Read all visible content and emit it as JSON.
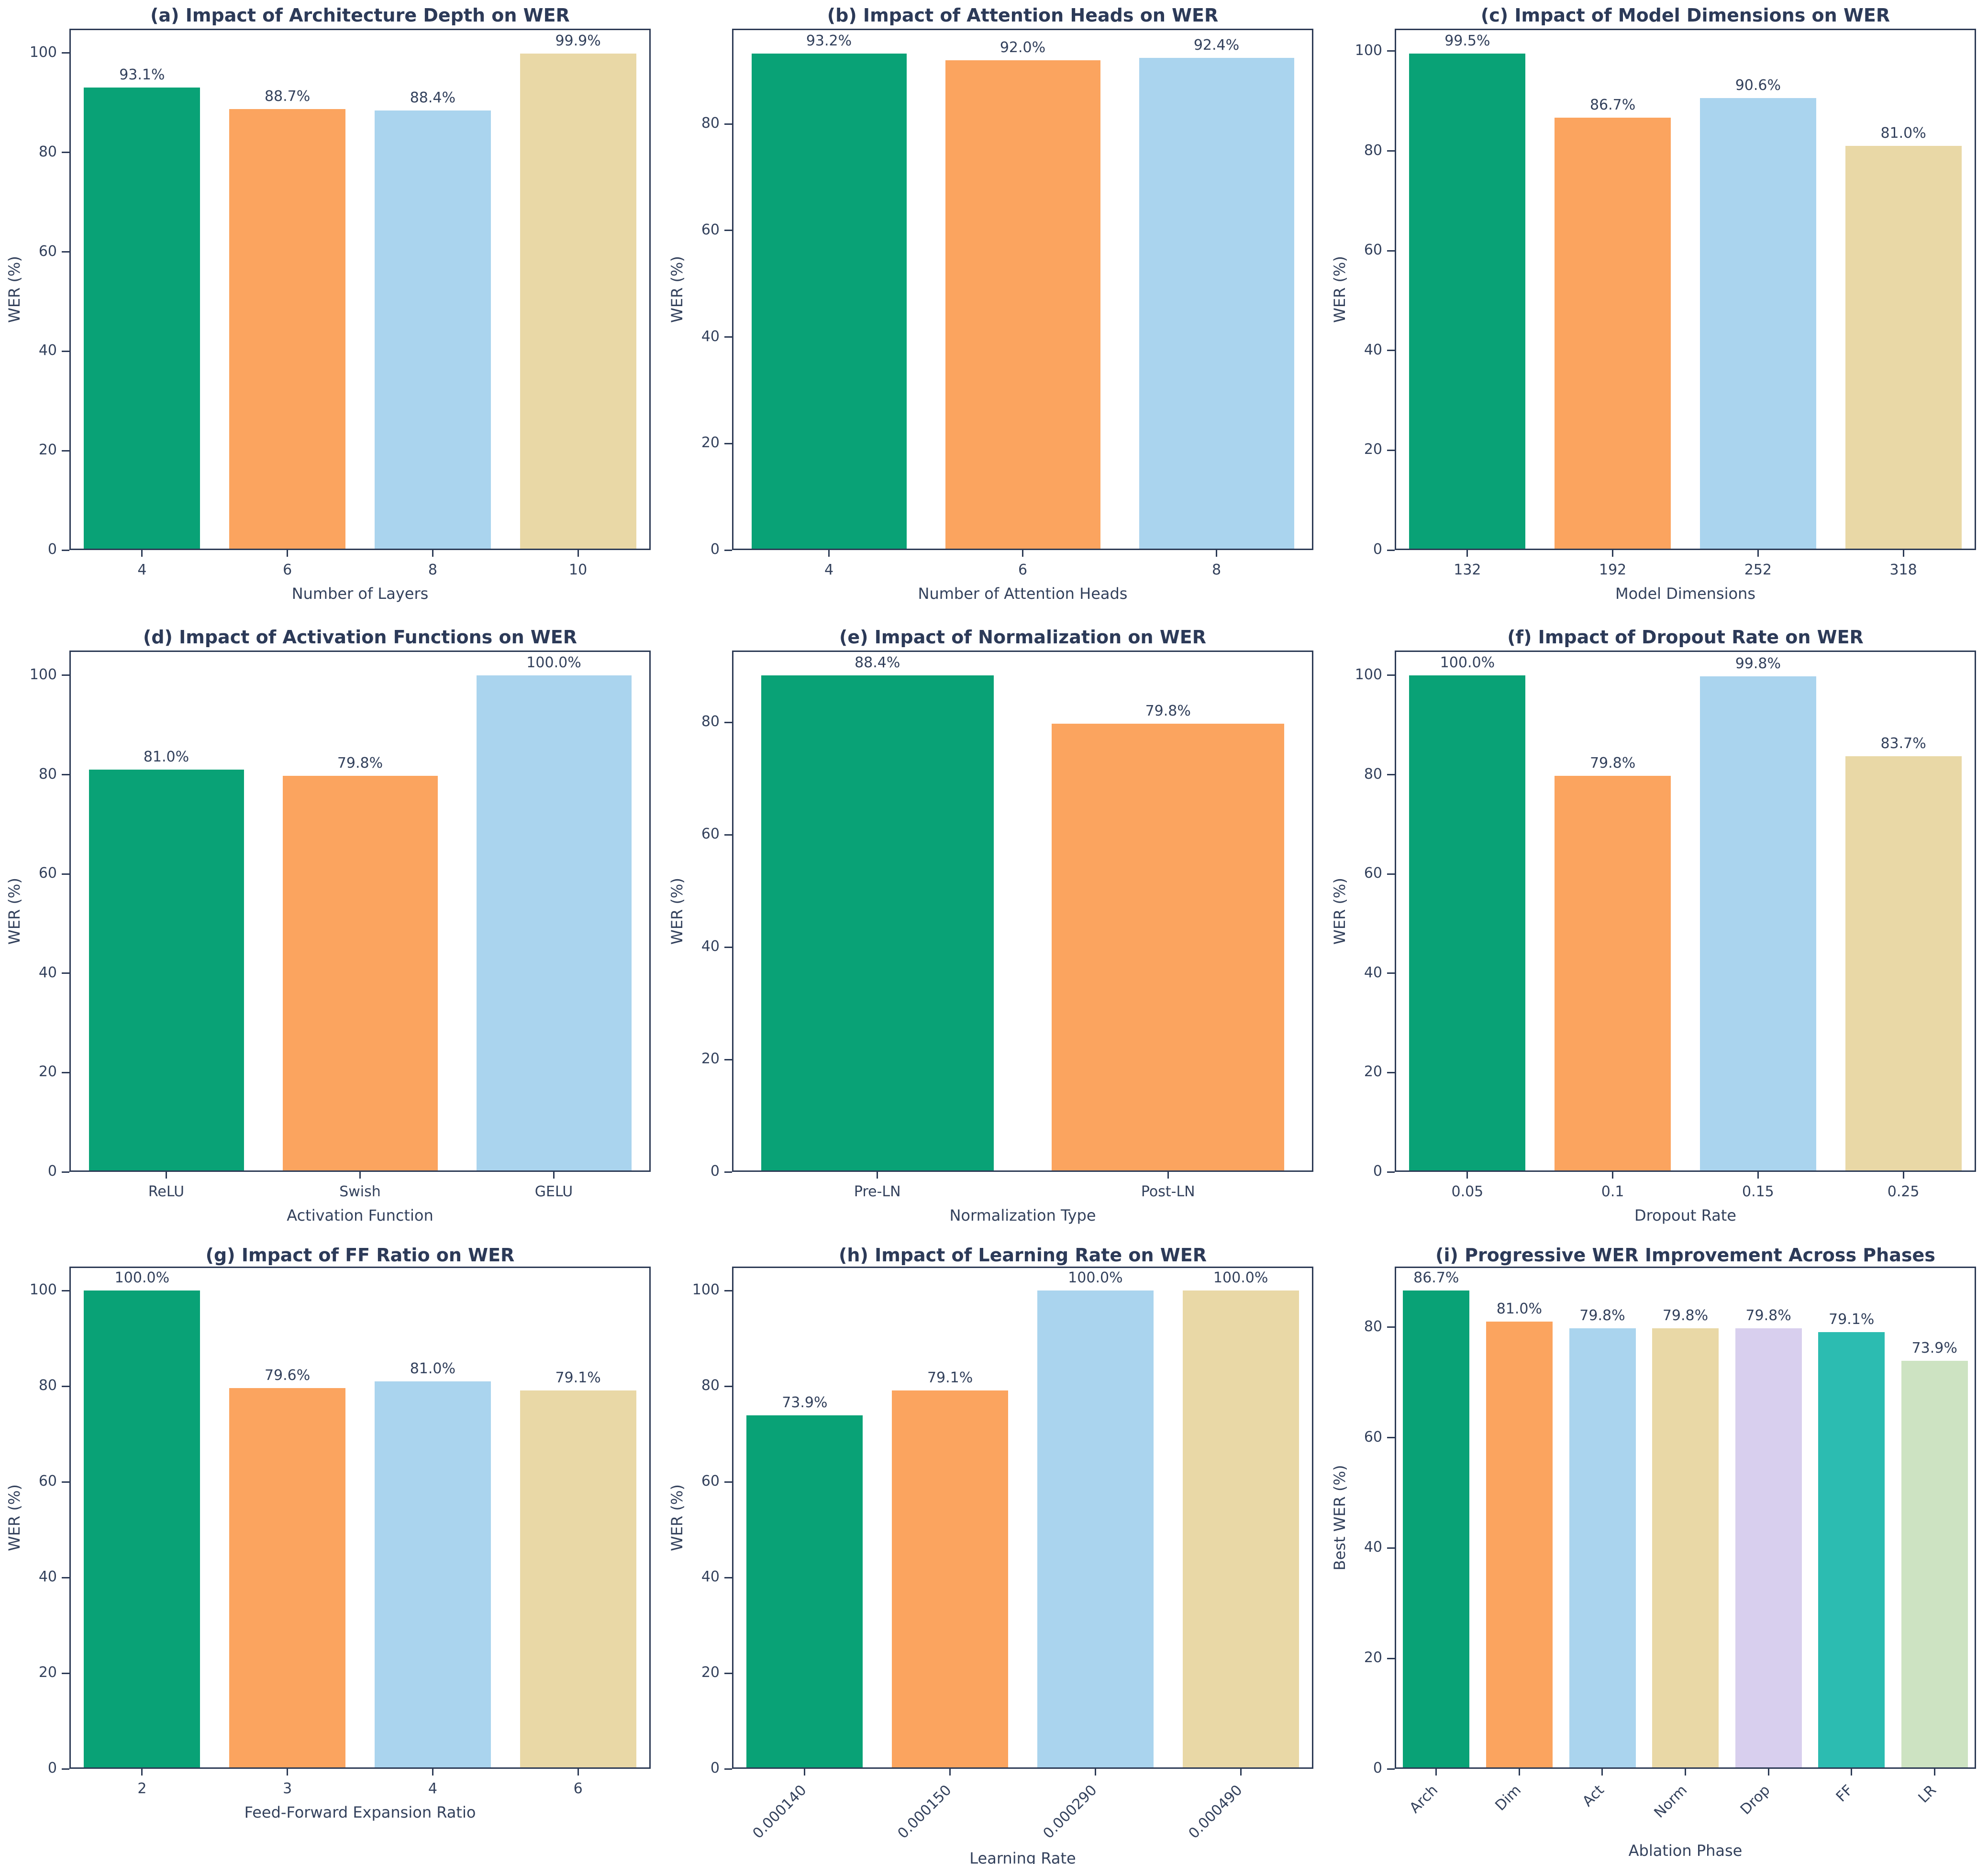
{
  "figure": {
    "description": "3x3 grid of ablation-study bar charts on WER",
    "text_color": "#33415c",
    "spine_color": "#2c3a55",
    "background": "#ffffff"
  },
  "palette": {
    "green": "#09a276",
    "orange": "#fba45f",
    "blue": "#aad4ee",
    "wheat": "#e9d8a6",
    "lavender": "#d8cfee",
    "teal": "#2cbcb1",
    "lightgreen": "#cde3c2"
  },
  "chart_data": [
    {
      "id": "a",
      "type": "bar",
      "row": 1,
      "title": "(a) Impact of Architecture Depth on WER",
      "xlabel": "Number of Layers",
      "ylabel": "WER (%)",
      "categories": [
        "4",
        "6",
        "8",
        "10"
      ],
      "values": [
        93.1,
        88.7,
        88.4,
        99.9
      ],
      "value_labels": [
        "93.1%",
        "88.7%",
        "88.4%",
        "99.9%"
      ],
      "yticks": [
        0,
        20,
        40,
        60,
        80,
        100
      ],
      "ylim": [
        0,
        104.9
      ],
      "color_keys": [
        "green",
        "orange",
        "blue",
        "wheat"
      ],
      "x_tick_rotation": 0,
      "grid": false,
      "legend": "none"
    },
    {
      "id": "b",
      "type": "bar",
      "row": 1,
      "title": "(b) Impact of Attention Heads on WER",
      "xlabel": "Number of Attention Heads",
      "ylabel": "WER (%)",
      "categories": [
        "4",
        "6",
        "8"
      ],
      "values": [
        93.2,
        92.0,
        92.4
      ],
      "value_labels": [
        "93.2%",
        "92.0%",
        "92.4%"
      ],
      "yticks": [
        0,
        20,
        40,
        60,
        80
      ],
      "ylim": [
        0,
        97.9
      ],
      "color_keys": [
        "green",
        "orange",
        "blue"
      ],
      "x_tick_rotation": 0,
      "grid": false,
      "legend": "none"
    },
    {
      "id": "c",
      "type": "bar",
      "row": 1,
      "title": "(c) Impact of Model Dimensions on WER",
      "xlabel": "Model Dimensions",
      "ylabel": "WER (%)",
      "categories": [
        "132",
        "192",
        "252",
        "318"
      ],
      "values": [
        99.5,
        86.7,
        90.6,
        81.0
      ],
      "value_labels": [
        "99.5%",
        "86.7%",
        "90.6%",
        "81.0%"
      ],
      "yticks": [
        0,
        20,
        40,
        60,
        80,
        100
      ],
      "ylim": [
        0,
        104.5
      ],
      "color_keys": [
        "green",
        "orange",
        "blue",
        "wheat"
      ],
      "x_tick_rotation": 0,
      "grid": false,
      "legend": "none"
    },
    {
      "id": "d",
      "type": "bar",
      "row": 2,
      "title": "(d) Impact of Activation Functions on WER",
      "xlabel": "Activation Function",
      "ylabel": "WER (%)",
      "categories": [
        "ReLU",
        "Swish",
        "GELU"
      ],
      "values": [
        81.0,
        79.8,
        100.0
      ],
      "value_labels": [
        "81.0%",
        "79.8%",
        "100.0%"
      ],
      "yticks": [
        0,
        20,
        40,
        60,
        80,
        100
      ],
      "ylim": [
        0,
        105
      ],
      "color_keys": [
        "green",
        "orange",
        "blue"
      ],
      "x_tick_rotation": 0,
      "grid": false,
      "legend": "none"
    },
    {
      "id": "e",
      "type": "bar",
      "row": 2,
      "title": "(e) Impact of Normalization on WER",
      "xlabel": "Normalization Type",
      "ylabel": "WER (%)",
      "categories": [
        "Pre-LN",
        "Post-LN"
      ],
      "values": [
        88.4,
        79.8
      ],
      "value_labels": [
        "88.4%",
        "79.8%"
      ],
      "yticks": [
        0,
        20,
        40,
        60,
        80
      ],
      "ylim": [
        0,
        92.8
      ],
      "color_keys": [
        "green",
        "orange"
      ],
      "x_tick_rotation": 0,
      "grid": false,
      "legend": "none"
    },
    {
      "id": "f",
      "type": "bar",
      "row": 2,
      "title": "(f) Impact of Dropout Rate on WER",
      "xlabel": "Dropout Rate",
      "ylabel": "WER (%)",
      "categories": [
        "0.05",
        "0.1",
        "0.15",
        "0.25"
      ],
      "values": [
        100.0,
        79.8,
        99.8,
        83.7
      ],
      "value_labels": [
        "100.0%",
        "79.8%",
        "99.8%",
        "83.7%"
      ],
      "yticks": [
        0,
        20,
        40,
        60,
        80,
        100
      ],
      "ylim": [
        0,
        105
      ],
      "color_keys": [
        "green",
        "orange",
        "blue",
        "wheat"
      ],
      "x_tick_rotation": 0,
      "grid": false,
      "legend": "none"
    },
    {
      "id": "g",
      "type": "bar",
      "row": 3,
      "title": "(g) Impact of FF Ratio on WER",
      "xlabel": "Feed-Forward Expansion Ratio",
      "ylabel": "WER (%)",
      "categories": [
        "2",
        "3",
        "4",
        "6"
      ],
      "values": [
        100.0,
        79.6,
        81.0,
        79.1
      ],
      "value_labels": [
        "100.0%",
        "79.6%",
        "81.0%",
        "79.1%"
      ],
      "yticks": [
        0,
        20,
        40,
        60,
        80,
        100
      ],
      "ylim": [
        0,
        105
      ],
      "color_keys": [
        "green",
        "orange",
        "blue",
        "wheat"
      ],
      "x_tick_rotation": 0,
      "grid": false,
      "legend": "none"
    },
    {
      "id": "h",
      "type": "bar",
      "row": 3,
      "title": "(h) Impact of Learning Rate on WER",
      "xlabel": "Learning Rate",
      "ylabel": "WER (%)",
      "categories": [
        "0.000140",
        "0.000150",
        "0.000290",
        "0.000490"
      ],
      "values": [
        73.9,
        79.1,
        100.0,
        100.0
      ],
      "value_labels": [
        "73.9%",
        "79.1%",
        "100.0%",
        "100.0%"
      ],
      "yticks": [
        0,
        20,
        40,
        60,
        80,
        100
      ],
      "ylim": [
        0,
        105
      ],
      "color_keys": [
        "green",
        "orange",
        "blue",
        "wheat"
      ],
      "x_tick_rotation": 45,
      "grid": false,
      "legend": "none"
    },
    {
      "id": "i",
      "type": "bar",
      "row": 3,
      "title": "(i) Progressive WER Improvement Across Phases",
      "xlabel": "Ablation Phase",
      "ylabel": "Best WER (%)",
      "categories": [
        "Arch",
        "Dim",
        "Act",
        "Norm",
        "Drop",
        "FF",
        "LR"
      ],
      "values": [
        86.7,
        81.0,
        79.8,
        79.8,
        79.8,
        79.1,
        73.9
      ],
      "value_labels": [
        "86.7%",
        "81.0%",
        "79.8%",
        "79.8%",
        "79.8%",
        "79.1%",
        "73.9%"
      ],
      "yticks": [
        0,
        20,
        40,
        60,
        80
      ],
      "ylim": [
        0,
        91.0
      ],
      "color_keys": [
        "green",
        "orange",
        "blue",
        "wheat",
        "lavender",
        "teal",
        "lightgreen"
      ],
      "x_tick_rotation": 45,
      "grid": false,
      "legend": "none"
    }
  ]
}
